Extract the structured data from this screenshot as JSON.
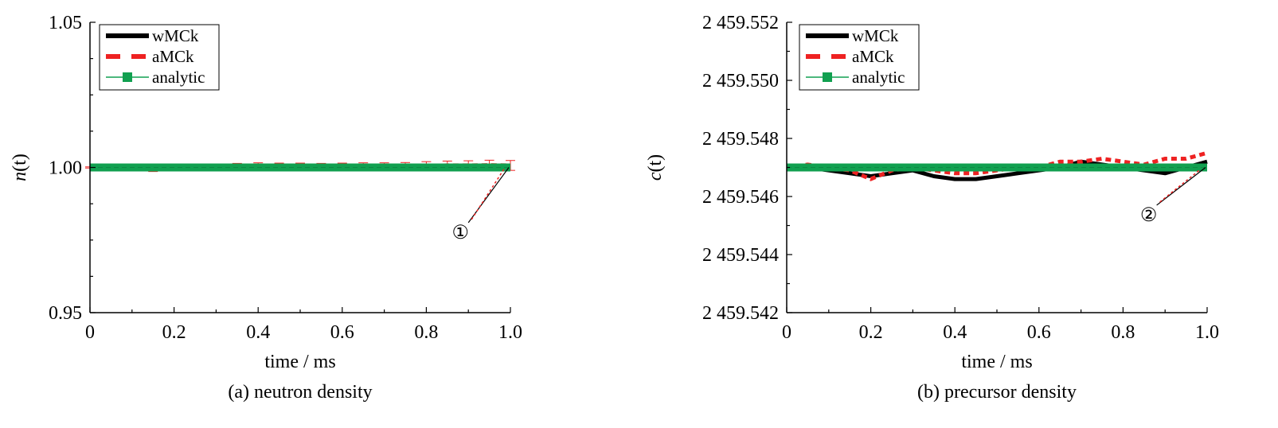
{
  "colors": {
    "wMCk": "#000000",
    "aMCk": "#ee2222",
    "analytic": "#11a050",
    "axis": "#000000"
  },
  "chart_data": [
    {
      "type": "line",
      "caption": "(a) neutron density",
      "xlabel": "time / ms",
      "ylabel": {
        "main": "n",
        "paren": "(t)"
      },
      "xlim": [
        0,
        1.0
      ],
      "ylim": [
        0.95,
        1.05
      ],
      "x_ticks": [
        0,
        0.2,
        0.4,
        0.6,
        0.8,
        1.0
      ],
      "x_tick_labels": [
        "0",
        "0.2",
        "0.4",
        "0.6",
        "0.8",
        "1.0"
      ],
      "y_ticks": [
        0.95,
        1.0,
        1.05
      ],
      "y_tick_labels": [
        "0.95",
        "1.00",
        "1.05"
      ],
      "legend_position": "top-left",
      "grid": false,
      "legend": [
        "wMCk",
        "aMCk",
        "analytic"
      ],
      "annotation": {
        "label": "①",
        "x": 0.9,
        "y": 0.981
      },
      "series": [
        {
          "name": "wMCk",
          "style": "solid",
          "x": [
            0.0,
            0.1,
            0.2,
            0.3,
            0.4,
            0.5,
            0.6,
            0.7,
            0.8,
            0.9,
            1.0
          ],
          "y": [
            1.0,
            1.0,
            1.0,
            1.0,
            1.0,
            1.0,
            1.0,
            1.0,
            1.0,
            1.0,
            1.0
          ]
        },
        {
          "name": "aMCk",
          "style": "dashed",
          "error_bars": true,
          "x": [
            0.0,
            0.05,
            0.1,
            0.15,
            0.2,
            0.25,
            0.3,
            0.35,
            0.4,
            0.45,
            0.5,
            0.55,
            0.6,
            0.65,
            0.7,
            0.75,
            0.8,
            0.85,
            0.9,
            0.95,
            1.0
          ],
          "y": [
            1.0,
            0.9998,
            0.9997,
            0.9993,
            0.9996,
            1.0,
            1.0002,
            1.0003,
            1.0004,
            1.0003,
            1.0003,
            1.0002,
            1.0002,
            1.0003,
            1.0002,
            1.0003,
            1.0005,
            1.0007,
            1.0007,
            1.0008,
            1.0007
          ],
          "err": [
            0.0002,
            0.0004,
            0.0006,
            0.0007,
            0.0008,
            0.0009,
            0.001,
            0.0011,
            0.0012,
            0.0012,
            0.0012,
            0.0012,
            0.0013,
            0.0013,
            0.0014,
            0.0014,
            0.0015,
            0.0015,
            0.0016,
            0.0017,
            0.0017
          ]
        },
        {
          "name": "analytic",
          "style": "thick",
          "x": [
            0.0,
            1.0
          ],
          "y": [
            1.0,
            1.0
          ]
        }
      ]
    },
    {
      "type": "line",
      "caption": "(b) precursor density",
      "xlabel": "time / ms",
      "ylabel": {
        "main": "c",
        "paren": "(t)"
      },
      "xlim": [
        0,
        1.0
      ],
      "ylim": [
        2459.542,
        2459.552
      ],
      "x_ticks": [
        0,
        0.2,
        0.4,
        0.6,
        0.8,
        1.0
      ],
      "x_tick_labels": [
        "0",
        "0.2",
        "0.4",
        "0.6",
        "0.8",
        "1.0"
      ],
      "y_ticks": [
        2459.542,
        2459.544,
        2459.546,
        2459.548,
        2459.55,
        2459.552
      ],
      "y_tick_labels": [
        "2 459.542",
        "2 459.544",
        "2 459.546",
        "2 459.548",
        "2 459.550",
        "2 459.552"
      ],
      "legend_position": "top-left",
      "grid": false,
      "legend": [
        "wMCk",
        "aMCk",
        "analytic"
      ],
      "annotation": {
        "label": "②",
        "x": 0.88,
        "y": 2459.5457
      },
      "series": [
        {
          "name": "wMCk",
          "style": "solid",
          "x": [
            0.0,
            0.05,
            0.1,
            0.15,
            0.2,
            0.25,
            0.3,
            0.35,
            0.4,
            0.45,
            0.5,
            0.55,
            0.6,
            0.65,
            0.7,
            0.75,
            0.8,
            0.85,
            0.9,
            0.95,
            1.0
          ],
          "y": [
            2459.547,
            2459.547,
            2459.5469,
            2459.5468,
            2459.5467,
            2459.5468,
            2459.5469,
            2459.5467,
            2459.5466,
            2459.5466,
            2459.5467,
            2459.5468,
            2459.5469,
            2459.547,
            2459.5472,
            2459.5471,
            2459.547,
            2459.5469,
            2459.5468,
            2459.547,
            2459.5472
          ]
        },
        {
          "name": "aMCk",
          "style": "dashed",
          "x": [
            0.0,
            0.05,
            0.1,
            0.15,
            0.2,
            0.25,
            0.3,
            0.35,
            0.4,
            0.45,
            0.5,
            0.55,
            0.6,
            0.65,
            0.7,
            0.75,
            0.8,
            0.85,
            0.9,
            0.95,
            1.0
          ],
          "y": [
            2459.547,
            2459.5471,
            2459.547,
            2459.5469,
            2459.5466,
            2459.5469,
            2459.547,
            2459.5469,
            2459.5468,
            2459.5468,
            2459.5469,
            2459.547,
            2459.547,
            2459.5472,
            2459.5472,
            2459.5473,
            2459.5472,
            2459.5471,
            2459.5473,
            2459.5473,
            2459.5475
          ]
        },
        {
          "name": "analytic",
          "style": "thick",
          "x": [
            0.0,
            1.0
          ],
          "y": [
            2459.547,
            2459.547
          ]
        }
      ]
    }
  ]
}
